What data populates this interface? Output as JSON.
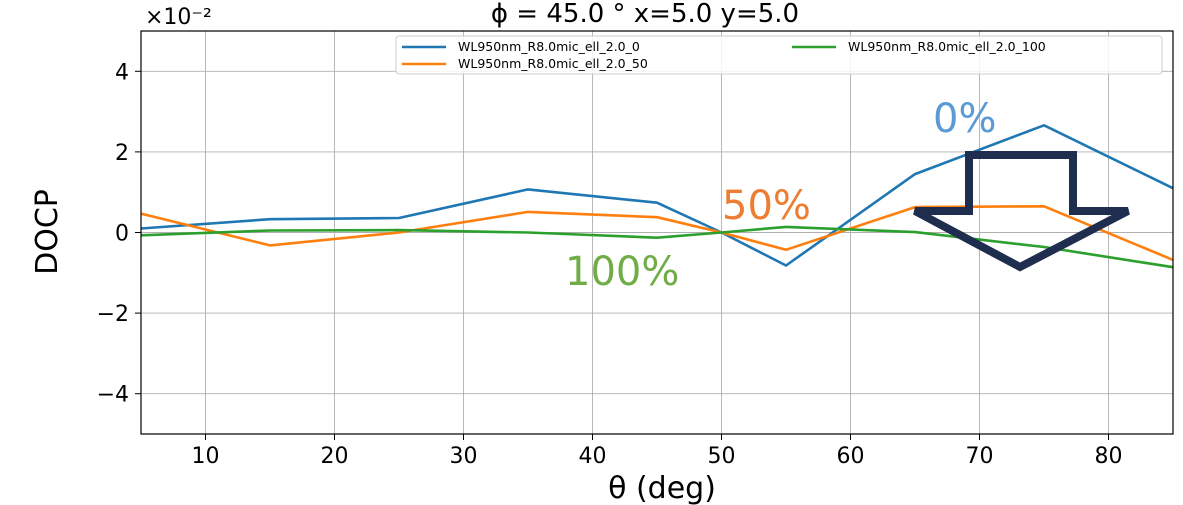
{
  "chart_data": {
    "type": "line",
    "title": "ϕ = 45.0 °    x=5.0  y=5.0",
    "xlabel": "θ (deg)",
    "ylabel": "DOCP",
    "y_scale_label": "×10⁻²",
    "xlim": [
      5,
      85
    ],
    "ylim": [
      -5,
      5
    ],
    "xticks": [
      10,
      20,
      30,
      40,
      50,
      60,
      70,
      80
    ],
    "yticks": [
      -4,
      -2,
      0,
      2,
      4
    ],
    "ytick_labels": [
      "−4",
      "−2",
      "0",
      "2",
      "4"
    ],
    "grid": true,
    "legend_position": "top-right",
    "x": [
      5,
      15,
      25,
      35,
      45,
      50,
      55,
      65,
      75,
      85
    ],
    "series": [
      {
        "name": "WL950nm_R8.0mic_ell_2.0_0",
        "color": "#1f77b4",
        "values": [
          0.1,
          0.33,
          0.36,
          1.07,
          0.74,
          0.0,
          -0.82,
          1.45,
          2.66,
          1.1
        ]
      },
      {
        "name": "WL950nm_R8.0mic_ell_2.0_50",
        "color": "#ff7f0e",
        "values": [
          0.47,
          -0.32,
          0.0,
          0.51,
          0.38,
          0.0,
          -0.43,
          0.63,
          0.65,
          -0.68
        ]
      },
      {
        "name": "WL950nm_R8.0mic_ell_2.0_100",
        "color": "#2ca02c",
        "values": [
          -0.07,
          0.05,
          0.06,
          0.0,
          -0.13,
          0.0,
          0.14,
          0.01,
          -0.36,
          -0.86
        ]
      }
    ],
    "annotations": [
      {
        "text": "0%",
        "color": "#5b9bd5"
      },
      {
        "text": "50%",
        "color": "#ed7d31"
      },
      {
        "text": "100%",
        "color": "#70ad47"
      }
    ],
    "arrow": {
      "direction": "down",
      "color": "#1f2d4e"
    }
  }
}
